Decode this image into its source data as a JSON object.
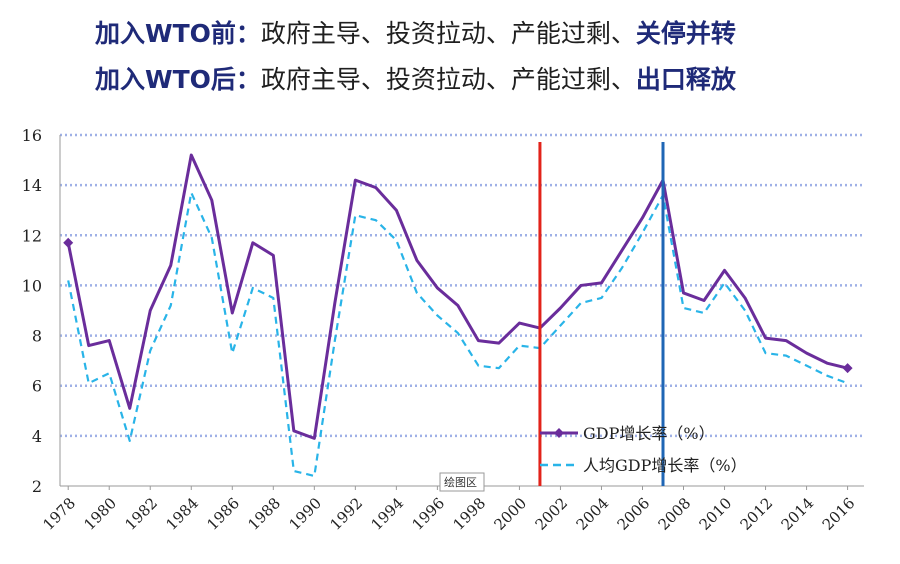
{
  "headlines": {
    "line1": {
      "lead": "加入WTO前",
      "sep": "：",
      "body": "政府主导、投资拉动、产能过剩、",
      "tail": "关停并转"
    },
    "line2": {
      "lead": "加入WTO后",
      "sep": "：",
      "body": "政府主导、投资拉动、产能过剩、",
      "tail": "出口释放"
    }
  },
  "plot_area_tag": "绘图区",
  "chart_data": {
    "type": "line",
    "title": "",
    "xlabel": "",
    "ylabel": "",
    "x": [
      1978,
      1979,
      1980,
      1981,
      1982,
      1983,
      1984,
      1985,
      1986,
      1987,
      1988,
      1989,
      1990,
      1991,
      1992,
      1993,
      1994,
      1995,
      1996,
      1997,
      1998,
      1999,
      2000,
      2001,
      2002,
      2003,
      2004,
      2005,
      2006,
      2007,
      2008,
      2009,
      2010,
      2011,
      2012,
      2013,
      2014,
      2015,
      2016
    ],
    "xticks": [
      "1978",
      "1980",
      "1982",
      "1984",
      "1986",
      "1988",
      "1990",
      "1992",
      "1994",
      "1996",
      "1998",
      "2000",
      "2002",
      "2004",
      "2006",
      "2008",
      "2010",
      "2012",
      "2014",
      "2016"
    ],
    "ylim": [
      2,
      16
    ],
    "yticks": [
      "2",
      "4",
      "6",
      "8",
      "10",
      "12",
      "14",
      "16"
    ],
    "grid": true,
    "legend_position": "bottom-right",
    "series": [
      {
        "name": "GDP增长率（%）",
        "color": "#6a2d9b",
        "style": "solid",
        "values": [
          11.7,
          7.6,
          7.8,
          5.1,
          9.0,
          10.8,
          15.2,
          13.4,
          8.9,
          11.7,
          11.2,
          4.2,
          3.9,
          9.3,
          14.2,
          13.9,
          13.0,
          11.0,
          9.9,
          9.2,
          7.8,
          7.7,
          8.5,
          8.3,
          9.1,
          10.0,
          10.1,
          11.4,
          12.7,
          14.2,
          9.7,
          9.4,
          10.6,
          9.5,
          7.9,
          7.8,
          7.3,
          6.9,
          6.7
        ]
      },
      {
        "name": "人均GDP增长率（%）",
        "color": "#29b4e8",
        "style": "dashed",
        "values": [
          10.2,
          6.1,
          6.5,
          3.8,
          7.4,
          9.2,
          13.7,
          11.9,
          7.3,
          9.9,
          9.5,
          2.6,
          2.4,
          7.8,
          12.8,
          12.6,
          11.8,
          9.7,
          8.8,
          8.1,
          6.8,
          6.7,
          7.6,
          7.5,
          8.4,
          9.3,
          9.5,
          10.7,
          12.1,
          13.6,
          9.1,
          8.9,
          10.1,
          9.0,
          7.3,
          7.2,
          6.8,
          6.4,
          6.1
        ]
      }
    ],
    "markers": [
      {
        "x": 2001,
        "color": "#e2231a"
      },
      {
        "x": 2007,
        "color": "#1f66b5"
      }
    ]
  }
}
